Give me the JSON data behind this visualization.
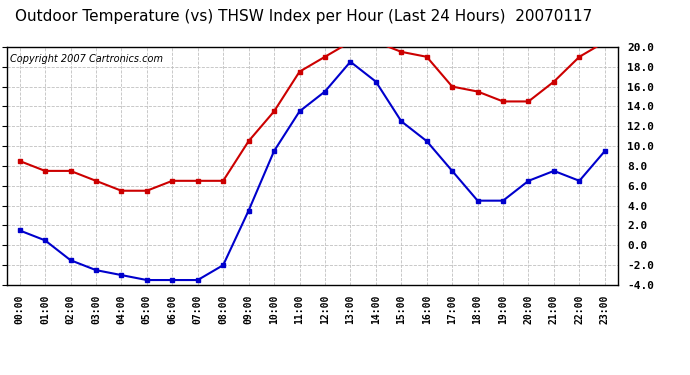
{
  "title": "Outdoor Temperature (vs) THSW Index per Hour (Last 24 Hours)  20070117",
  "copyright": "Copyright 2007 Cartronics.com",
  "hours": [
    "00:00",
    "01:00",
    "02:00",
    "03:00",
    "04:00",
    "05:00",
    "06:00",
    "07:00",
    "08:00",
    "09:00",
    "10:00",
    "11:00",
    "12:00",
    "13:00",
    "14:00",
    "15:00",
    "16:00",
    "17:00",
    "18:00",
    "19:00",
    "20:00",
    "21:00",
    "22:00",
    "23:00"
  ],
  "temp": [
    1.5,
    0.5,
    -1.5,
    -2.5,
    -3.0,
    -3.5,
    -3.5,
    -3.5,
    -2.0,
    3.5,
    9.5,
    13.5,
    15.5,
    18.5,
    16.5,
    12.5,
    10.5,
    7.5,
    4.5,
    4.5,
    6.5,
    7.5,
    6.5,
    9.5
  ],
  "thsw": [
    8.5,
    7.5,
    7.5,
    6.5,
    5.5,
    5.5,
    6.5,
    6.5,
    6.5,
    10.5,
    13.5,
    17.5,
    19.0,
    20.5,
    20.5,
    19.5,
    19.0,
    16.0,
    15.5,
    14.5,
    14.5,
    16.5,
    19.0,
    20.5
  ],
  "temp_color": "#0000cc",
  "thsw_color": "#cc0000",
  "bg_color": "#ffffff",
  "plot_bg": "#ffffff",
  "grid_color": "#c0c0c0",
  "ylim": [
    -4,
    20
  ],
  "yticks": [
    -4,
    -2,
    0,
    2,
    4,
    6,
    8,
    10,
    12,
    14,
    16,
    18,
    20
  ],
  "title_fontsize": 11,
  "copyright_fontsize": 7,
  "linewidth": 1.5,
  "markersize": 3.5
}
